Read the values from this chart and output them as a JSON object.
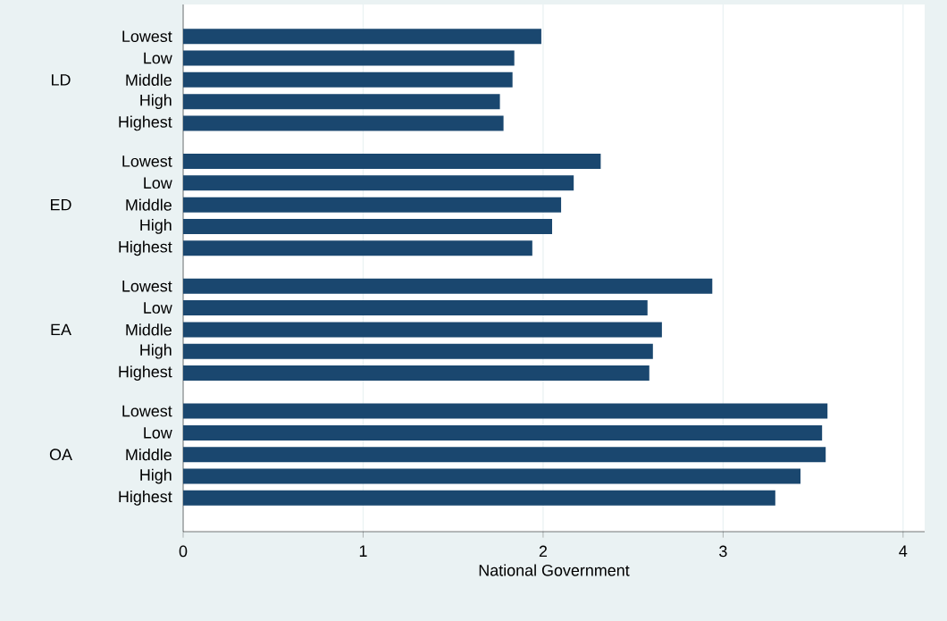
{
  "chart_data": {
    "type": "bar",
    "orientation": "horizontal",
    "xlabel": "National Government",
    "categories": [
      "Lowest",
      "Low",
      "Middle",
      "High",
      "Highest",
      "Lowest",
      "Low",
      "Middle",
      "High",
      "Highest",
      "Lowest",
      "Low",
      "Middle",
      "High",
      "Highest",
      "Lowest",
      "Low",
      "Middle",
      "High",
      "Highest"
    ],
    "annotations": [
      "LD",
      "ED",
      "EA",
      "OA"
    ],
    "values": [
      1.99,
      1.84,
      1.83,
      1.76,
      1.78,
      2.32,
      2.17,
      2.1,
      2.05,
      1.94,
      2.94,
      2.58,
      2.66,
      2.61,
      2.59,
      3.58,
      3.55,
      3.57,
      3.43,
      3.29
    ],
    "color": "#1a476f",
    "xlim": [
      0,
      4.12
    ],
    "xticks": [
      0,
      1,
      2,
      3,
      4
    ],
    "grid": "x"
  }
}
